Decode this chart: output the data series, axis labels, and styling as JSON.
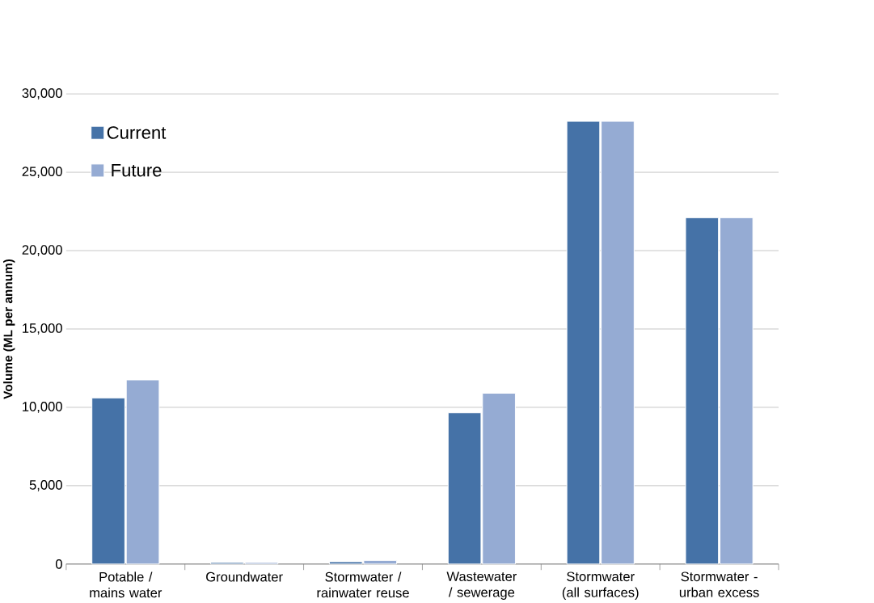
{
  "chart_data": {
    "type": "bar",
    "ylabel": "Volume (ML per annum)",
    "categories": [
      "Potable / mains water",
      "Groundwater",
      "Stormwater / rainwater reuse",
      "Wastewater / sewerage",
      "Stormwater (all surfaces)",
      "Stormwater - urban excess"
    ],
    "series": [
      {
        "name": "Current",
        "color": "#4572a7",
        "values": [
          10600,
          100,
          150,
          9650,
          28250,
          22100
        ]
      },
      {
        "name": "Future",
        "color": "#95abd3",
        "values": [
          11750,
          100,
          230,
          10900,
          28250,
          22100
        ]
      }
    ],
    "ylim": [
      0,
      30000
    ],
    "yticks": [
      {
        "value": 0,
        "label": "0"
      },
      {
        "value": 5000,
        "label": "5,000"
      },
      {
        "value": 10000,
        "label": "10,000"
      },
      {
        "value": 15000,
        "label": "15,000"
      },
      {
        "value": 20000,
        "label": "20,000"
      },
      {
        "value": 25000,
        "label": "25,000"
      },
      {
        "value": 30000,
        "label": "30,000"
      }
    ],
    "grid": "y",
    "legend": "top left"
  }
}
